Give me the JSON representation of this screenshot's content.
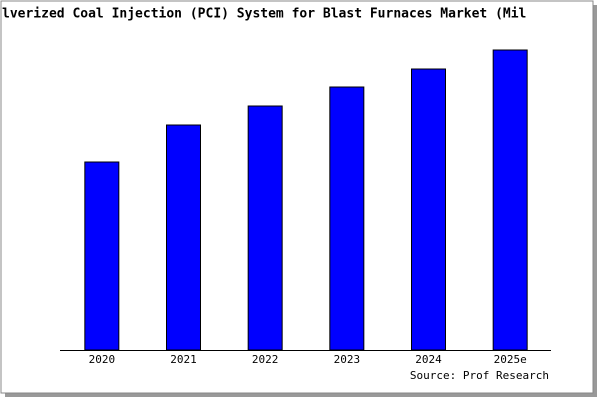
{
  "chart_data": {
    "type": "bar",
    "title": "lverized Coal Injection (PCI) System for Blast Furnaces Market (Mil",
    "categories": [
      "2020",
      "2021",
      "2022",
      "2023",
      "2024",
      "2025e"
    ],
    "values": [
      188,
      225,
      244,
      263,
      281,
      300
    ],
    "color": "#0000ff",
    "source": "Source: Prof Research"
  }
}
